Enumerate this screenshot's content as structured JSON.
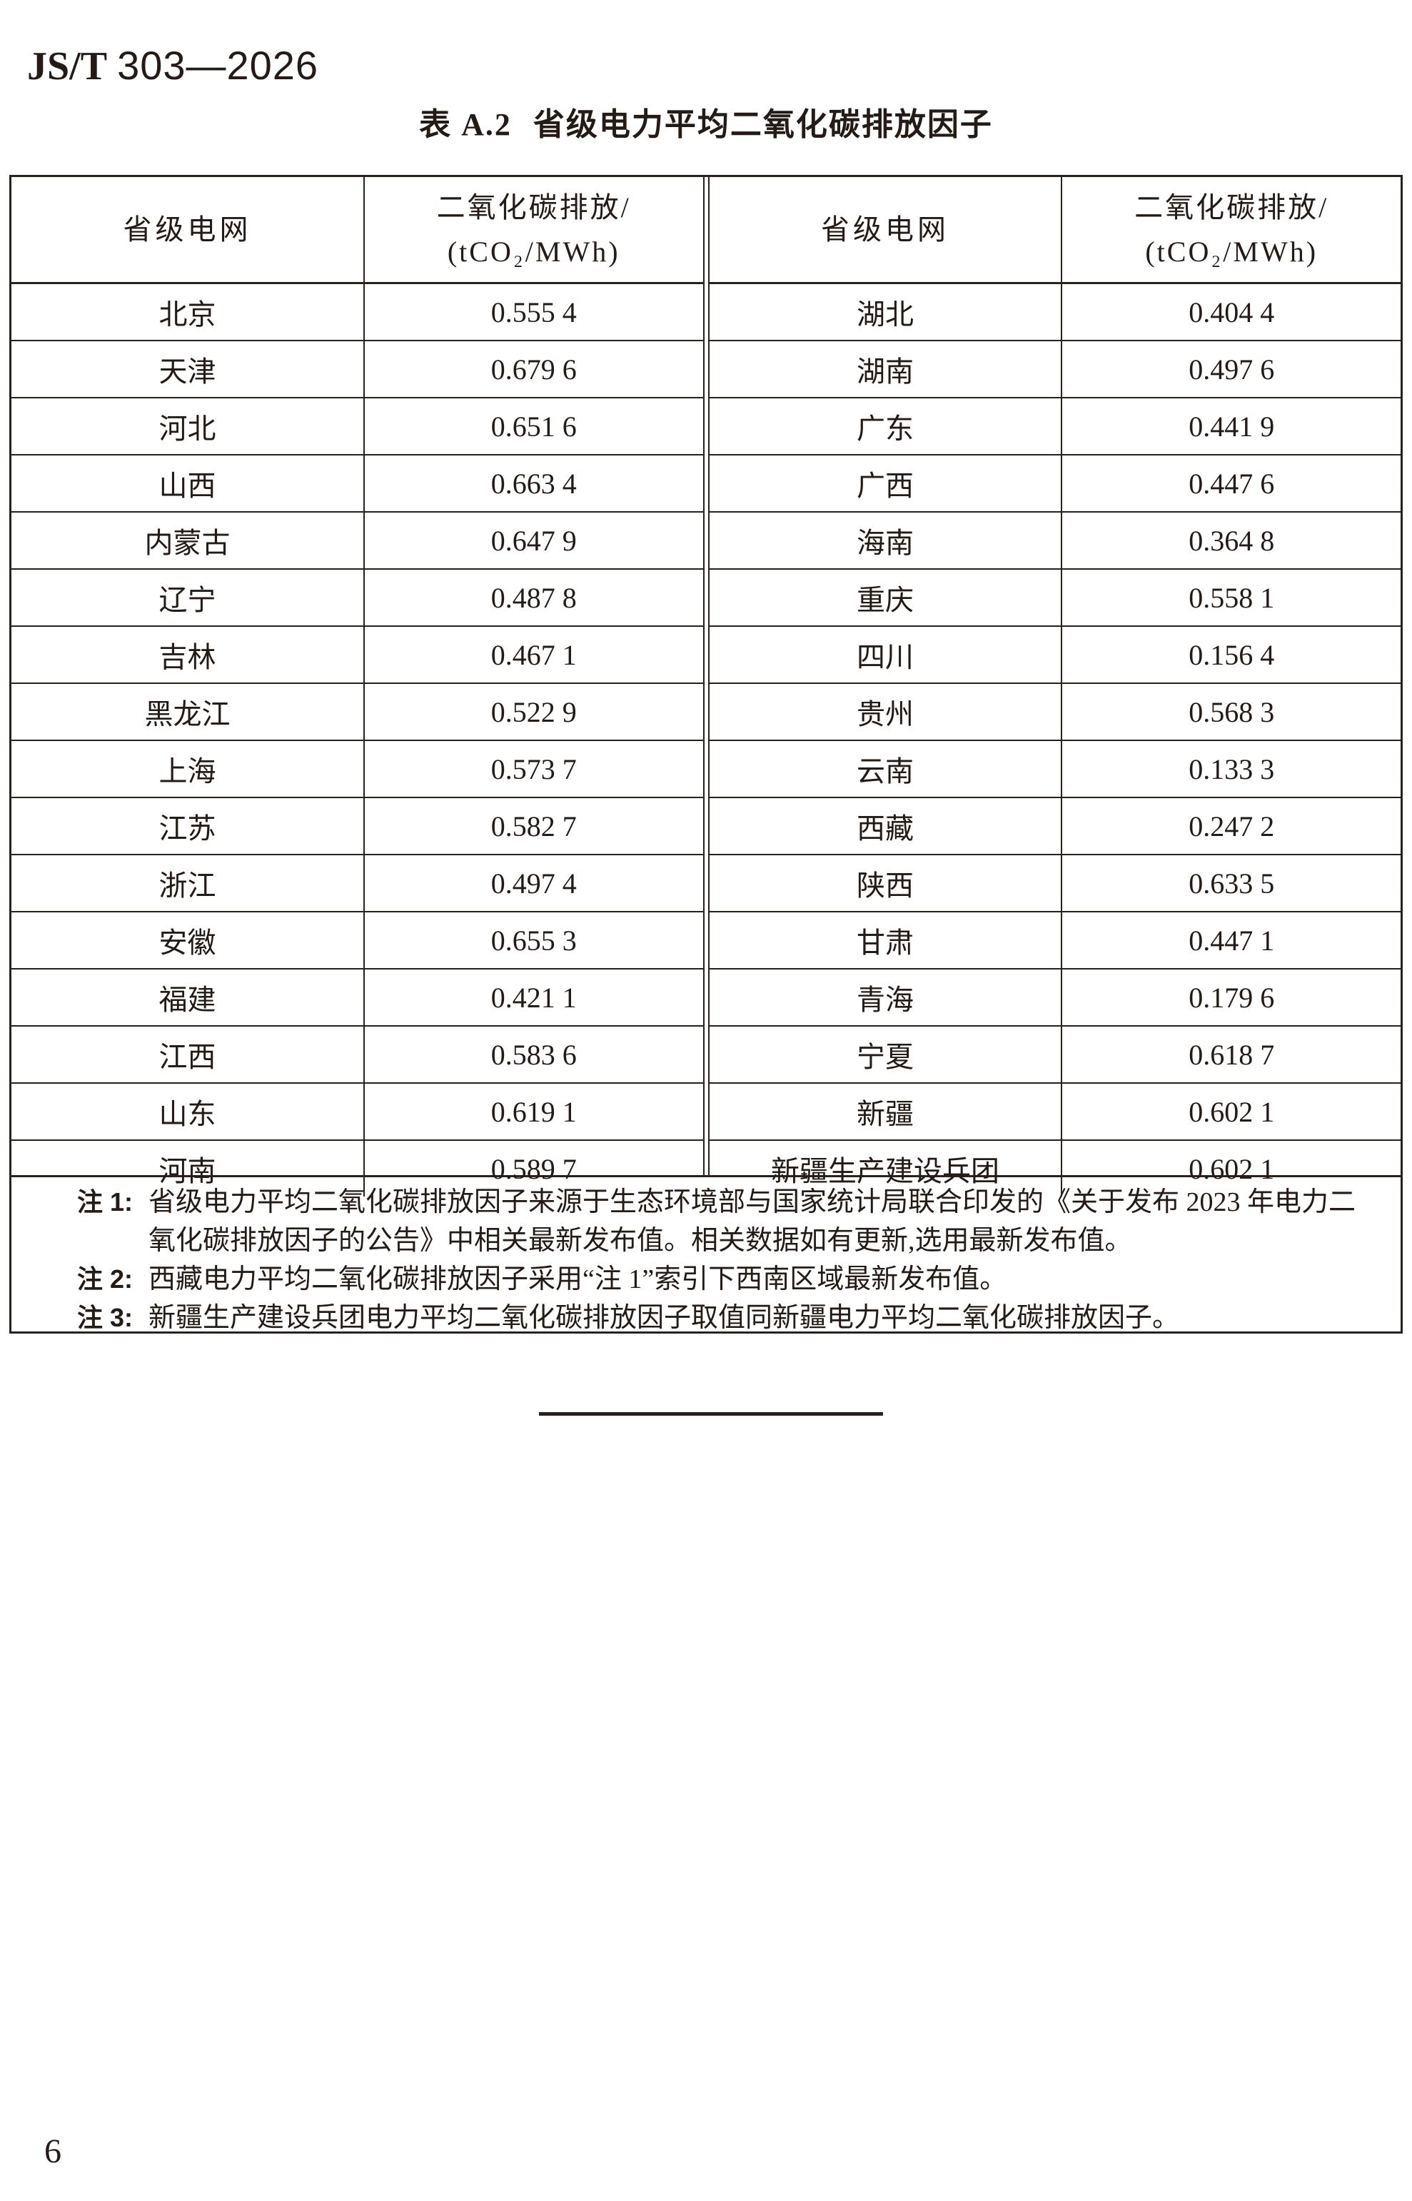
{
  "doc": {
    "standard_code": "JS/T",
    "standard_number": "303—2026",
    "page_number": "6"
  },
  "table": {
    "title_label": "表 A.2",
    "title_text": "省级电力平均二氧化碳排放因子",
    "headers": {
      "grid": "省级电网",
      "emission_line1": "二氧化碳排放/",
      "emission_line2": "(tCO₂/MWh)"
    },
    "left_rows": [
      {
        "province": "北京",
        "value": "0.555 4"
      },
      {
        "province": "天津",
        "value": "0.679 6"
      },
      {
        "province": "河北",
        "value": "0.651 6"
      },
      {
        "province": "山西",
        "value": "0.663 4"
      },
      {
        "province": "内蒙古",
        "value": "0.647 9"
      },
      {
        "province": "辽宁",
        "value": "0.487 8"
      },
      {
        "province": "吉林",
        "value": "0.467 1"
      },
      {
        "province": "黑龙江",
        "value": "0.522 9"
      },
      {
        "province": "上海",
        "value": "0.573 7"
      },
      {
        "province": "江苏",
        "value": "0.582 7"
      },
      {
        "province": "浙江",
        "value": "0.497 4"
      },
      {
        "province": "安徽",
        "value": "0.655 3"
      },
      {
        "province": "福建",
        "value": "0.421 1"
      },
      {
        "province": "江西",
        "value": "0.583 6"
      },
      {
        "province": "山东",
        "value": "0.619 1"
      },
      {
        "province": "河南",
        "value": "0.589 7"
      }
    ],
    "right_rows": [
      {
        "province": "湖北",
        "value": "0.404 4"
      },
      {
        "province": "湖南",
        "value": "0.497 6"
      },
      {
        "province": "广东",
        "value": "0.441 9"
      },
      {
        "province": "广西",
        "value": "0.447 6"
      },
      {
        "province": "海南",
        "value": "0.364 8"
      },
      {
        "province": "重庆",
        "value": "0.558 1"
      },
      {
        "province": "四川",
        "value": "0.156 4"
      },
      {
        "province": "贵州",
        "value": "0.568 3"
      },
      {
        "province": "云南",
        "value": "0.133 3"
      },
      {
        "province": "西藏",
        "value": "0.247 2"
      },
      {
        "province": "陕西",
        "value": "0.633 5"
      },
      {
        "province": "甘肃",
        "value": "0.447 1"
      },
      {
        "province": "青海",
        "value": "0.179 6"
      },
      {
        "province": "宁夏",
        "value": "0.618 7"
      },
      {
        "province": "新疆",
        "value": "0.602 1"
      },
      {
        "province": "新疆生产建设兵团",
        "value": "0.602 1"
      }
    ],
    "notes": [
      {
        "label": "注 1:",
        "text": "省级电力平均二氧化碳排放因子来源于生态环境部与国家统计局联合印发的《关于发布 2023 年电力二氧化碳排放因子的公告》中相关最新发布值。相关数据如有更新,选用最新发布值。"
      },
      {
        "label": "注 2:",
        "text": "西藏电力平均二氧化碳排放因子采用“注 1”索引下西南区域最新发布值。"
      },
      {
        "label": "注 3:",
        "text": "新疆生产建设兵团电力平均二氧化碳排放因子取值同新疆电力平均二氧化碳排放因子。"
      }
    ]
  }
}
